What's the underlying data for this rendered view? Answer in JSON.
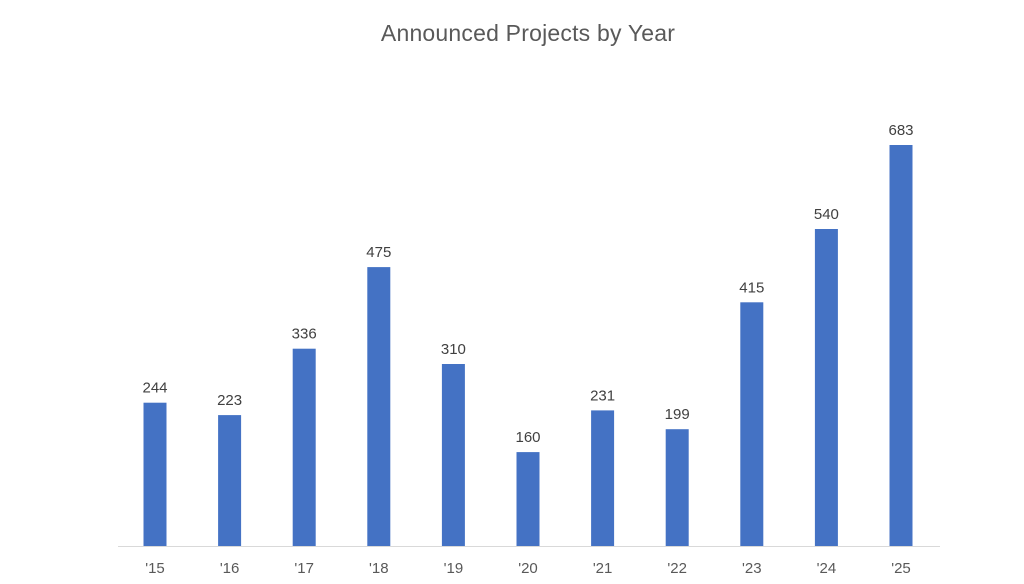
{
  "chart_data": {
    "type": "bar",
    "title": "Announced Projects by Year",
    "categories": [
      "'15",
      "'16",
      "'17",
      "'18",
      "'19",
      "'20",
      "'21",
      "'22",
      "'23",
      "'24",
      "'25"
    ],
    "values": [
      244,
      223,
      336,
      475,
      310,
      160,
      231,
      199,
      415,
      540,
      683
    ],
    "data_labels": [
      "244",
      "223",
      "336",
      "475",
      "310",
      "160",
      "231",
      "199",
      "415",
      "540",
      "683"
    ],
    "xlabel": "",
    "ylabel": "",
    "ylim": [
      0,
      700
    ],
    "grid": false,
    "legend": "none",
    "bar_color": "#4472C4"
  }
}
